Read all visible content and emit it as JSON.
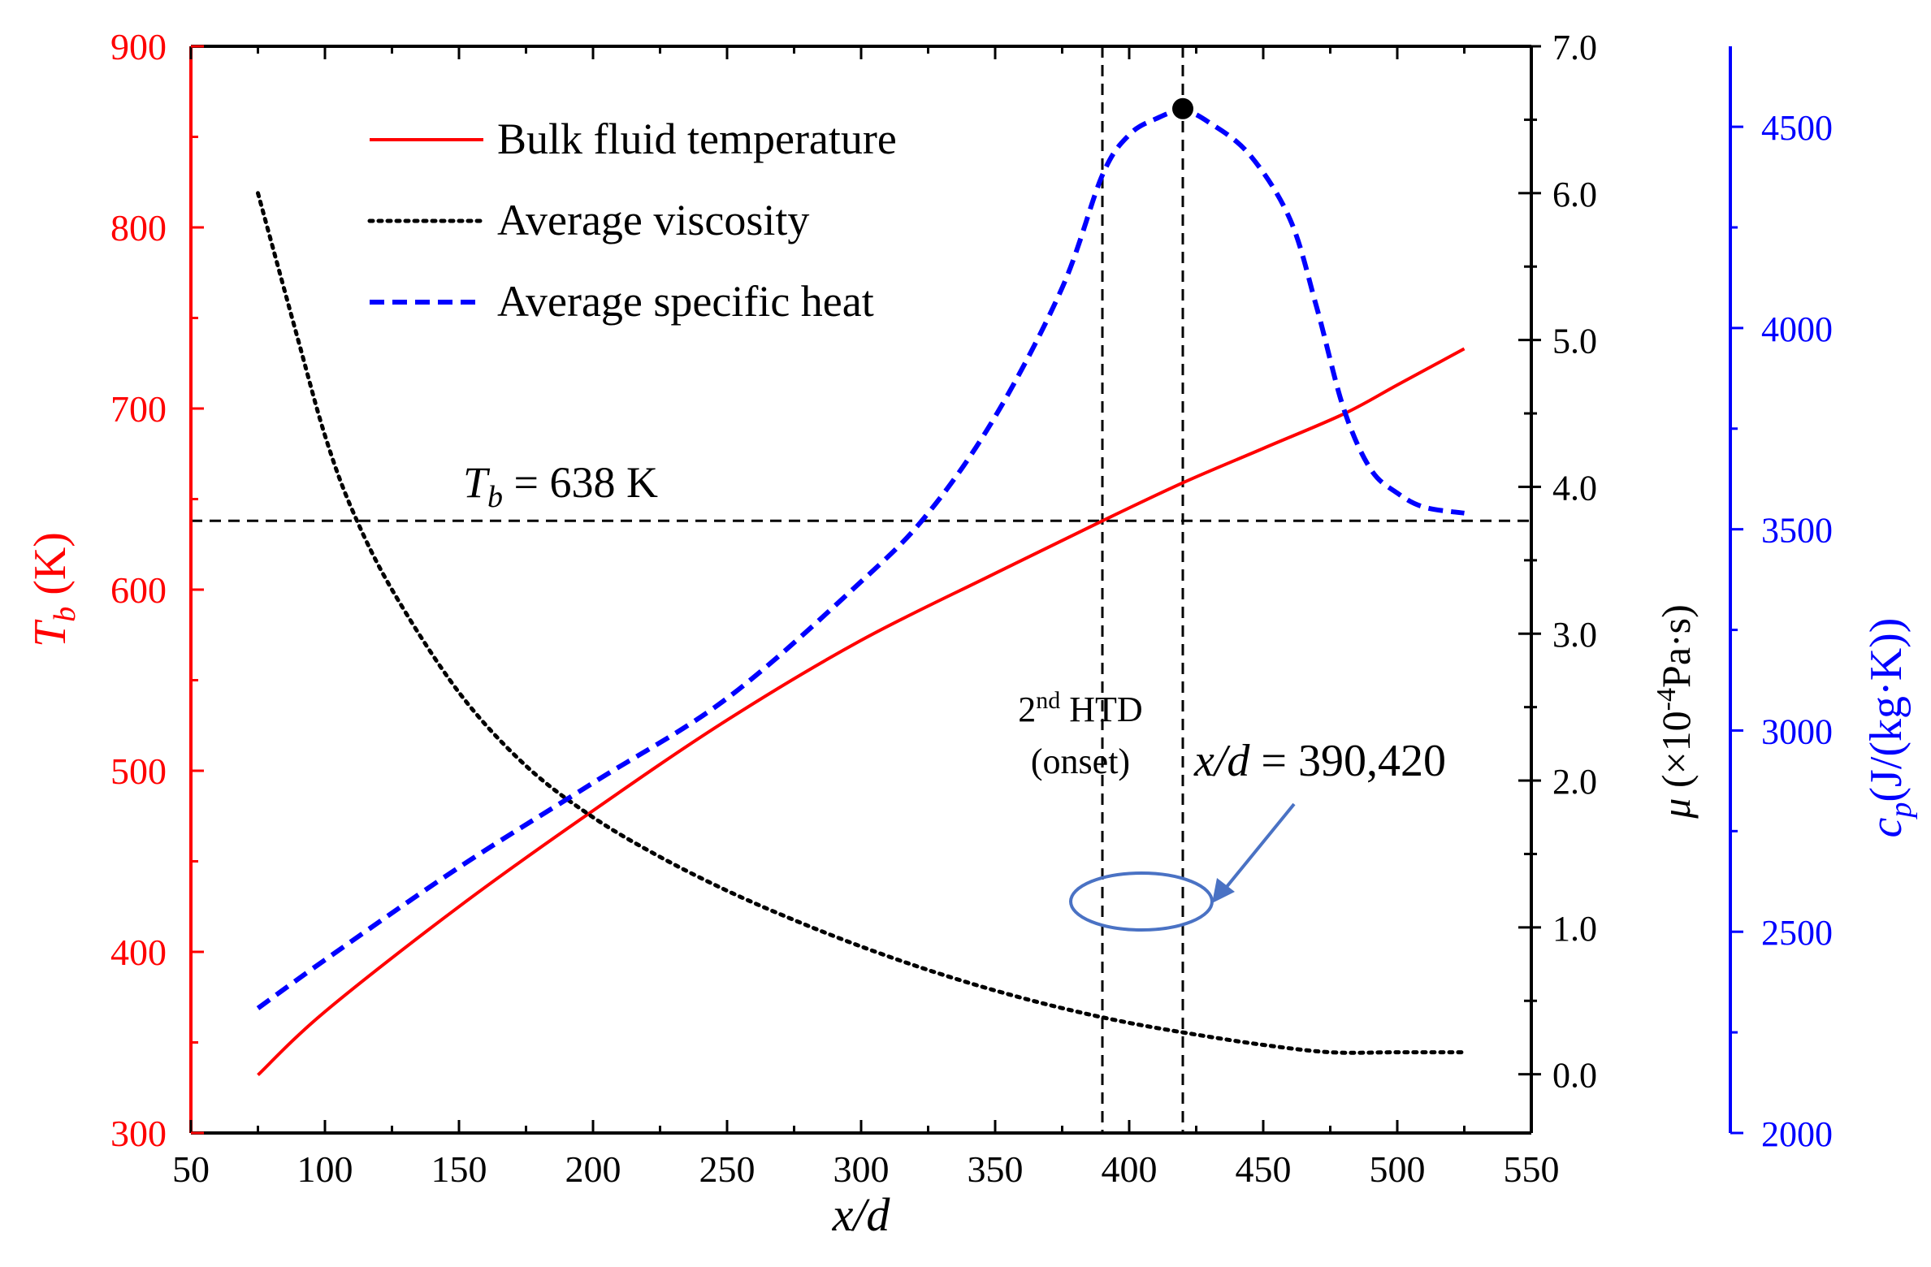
{
  "chart_data": {
    "type": "line",
    "x_axis": {
      "label": "x/d",
      "range": [
        50,
        550
      ],
      "ticks": [
        50,
        100,
        150,
        200,
        250,
        300,
        350,
        400,
        450,
        500,
        550
      ],
      "tick_labels": [
        "50",
        "100",
        "150",
        "200",
        "250",
        "300",
        "350",
        "400",
        "450",
        "500",
        "550"
      ]
    },
    "y_left": {
      "label": "T",
      "label_sub": "b",
      "label_unit": " (K)",
      "range": [
        300,
        900
      ],
      "ticks": [
        300,
        400,
        500,
        600,
        700,
        800,
        900
      ],
      "tick_labels": [
        "300",
        "400",
        "500",
        "600",
        "700",
        "800",
        "900"
      ],
      "color": "#ff0000"
    },
    "y_right1": {
      "label": "μ",
      "label_unit": " (×10",
      "label_sup": "-4",
      "label_unit2": "Pa·s)",
      "range": [
        -0.4,
        7.0
      ],
      "ticks": [
        0.0,
        1.0,
        2.0,
        3.0,
        4.0,
        5.0,
        6.0,
        7.0
      ],
      "tick_labels": [
        "0.0",
        "1.0",
        "2.0",
        "3.0",
        "4.0",
        "5.0",
        "6.0",
        "7.0"
      ],
      "color": "#000000"
    },
    "y_right2": {
      "label": "c",
      "label_sub": "p",
      "label_unit": "(J/(kg·K))",
      "range": [
        2000,
        4700
      ],
      "ticks": [
        2000,
        2500,
        3000,
        3500,
        4000,
        4500
      ],
      "tick_labels": [
        "2000",
        "2500",
        "3000",
        "3500",
        "4000",
        "4500"
      ],
      "color": "#0000ff"
    },
    "series": [
      {
        "name": "Bulk fluid temperature",
        "axis": "left",
        "color": "#ff0000",
        "style": "solid",
        "x": [
          75,
          100,
          150,
          200,
          250,
          300,
          350,
          390,
          420,
          450,
          480,
          500,
          525
        ],
        "y": [
          332,
          367,
          425,
          478,
          528,
          572,
          609,
          638,
          659,
          678,
          697,
          713,
          733
        ]
      },
      {
        "name": "Average viscosity",
        "axis": "right1",
        "color": "#000000",
        "style": "dotted",
        "x": [
          75,
          90,
          100,
          110,
          125,
          150,
          175,
          200,
          225,
          250,
          275,
          300,
          325,
          350,
          375,
          400,
          425,
          450,
          475,
          500,
          525
        ],
        "y": [
          6.0,
          5.0,
          4.35,
          3.85,
          3.3,
          2.6,
          2.1,
          1.75,
          1.48,
          1.25,
          1.05,
          0.87,
          0.71,
          0.57,
          0.45,
          0.35,
          0.27,
          0.2,
          0.15,
          0.15,
          0.15
        ]
      },
      {
        "name": "Average specific heat",
        "axis": "right2",
        "color": "#0000ff",
        "style": "dashed",
        "x": [
          75,
          100,
          150,
          200,
          250,
          300,
          325,
          350,
          375,
          390,
          400,
          410,
          420,
          430,
          445,
          460,
          470,
          480,
          490,
          500,
          510,
          525
        ],
        "y": [
          2310,
          2430,
          2660,
          2870,
          3080,
          3370,
          3540,
          3780,
          4100,
          4380,
          4480,
          4520,
          4540,
          4510,
          4430,
          4270,
          4050,
          3800,
          3650,
          3590,
          3555,
          3540
        ]
      }
    ],
    "legend": {
      "position": "top-left",
      "entries": [
        "Bulk fluid temperature",
        "Average viscosity",
        "Average specific heat"
      ]
    },
    "reference_lines": {
      "horizontal": {
        "y": 638,
        "label_main": "T",
        "label_sub": "b",
        "label_rest": " = 638 K"
      },
      "vertical": [
        390,
        420
      ]
    },
    "peak_marker": {
      "x": 420,
      "y": 4545
    },
    "annotations": {
      "htd_line1_main": "2",
      "htd_line1_sup": "nd",
      "htd_line1_rest": " HTD",
      "htd_line2": "(onset)",
      "xd_italic": "x/d",
      "xd_rest": " = 390,420"
    }
  }
}
